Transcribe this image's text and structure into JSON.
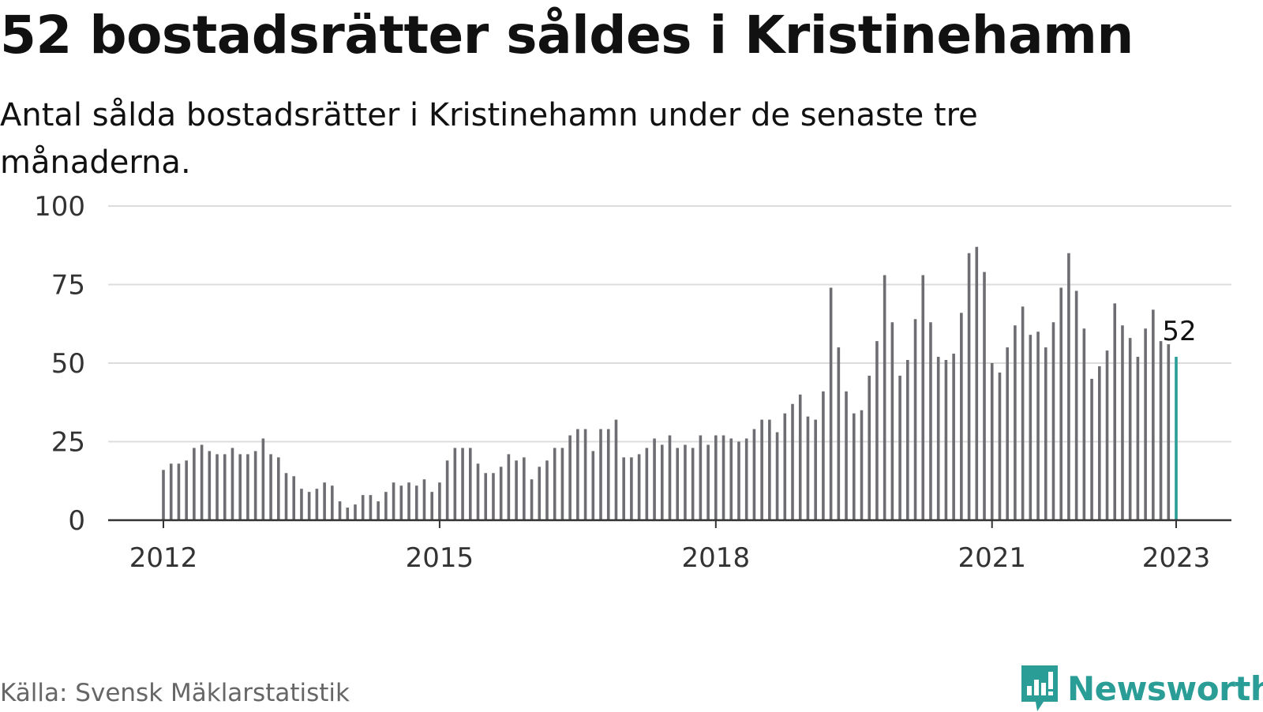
{
  "header": {
    "title": "52 bostadsrätter såldes i Kristinehamn",
    "subtitle": "Antal sålda bostadsrätter i Kristinehamn under de senaste tre månaderna."
  },
  "footer": {
    "source": "Källa: Svensk Mäklarstatistik",
    "brand": "Newsworthy",
    "brand_icon": "newsworthy-logo-icon"
  },
  "colors": {
    "bar": "#6d6d72",
    "highlight": "#2a9d96",
    "grid": "#dcdcdc",
    "axis": "#333333",
    "brand": "#2a9d96"
  },
  "chart_data": {
    "type": "bar",
    "x_start": "2012-01",
    "x_end": "2023-01",
    "x_unit": "month",
    "xtick_labels": [
      "2012",
      "2015",
      "2018",
      "2021",
      "2023"
    ],
    "ytick_labels": [
      "0",
      "25",
      "50",
      "75",
      "100"
    ],
    "ylim": [
      0,
      100
    ],
    "grid": true,
    "highlight_label": "52",
    "values": [
      16,
      18,
      18,
      19,
      23,
      24,
      22,
      21,
      21,
      23,
      21,
      21,
      22,
      26,
      21,
      20,
      15,
      14,
      10,
      9,
      10,
      12,
      11,
      6,
      4,
      5,
      8,
      8,
      6,
      9,
      12,
      11,
      12,
      11,
      13,
      9,
      12,
      19,
      23,
      23,
      23,
      18,
      15,
      15,
      17,
      21,
      19,
      20,
      13,
      17,
      19,
      23,
      23,
      27,
      29,
      29,
      22,
      29,
      29,
      32,
      20,
      20,
      21,
      23,
      26,
      24,
      27,
      23,
      24,
      23,
      27,
      24,
      27,
      27,
      26,
      25,
      26,
      29,
      32,
      32,
      28,
      34,
      37,
      40,
      33,
      32,
      41,
      74,
      55,
      41,
      34,
      35,
      46,
      57,
      78,
      63,
      46,
      51,
      64,
      78,
      63,
      52,
      51,
      53,
      66,
      85,
      87,
      79,
      50,
      47,
      55,
      62,
      68,
      59,
      60,
      55,
      63,
      74,
      85,
      73,
      61,
      45,
      49,
      54,
      69,
      62,
      58,
      52,
      61,
      67,
      57,
      56,
      52
    ]
  }
}
